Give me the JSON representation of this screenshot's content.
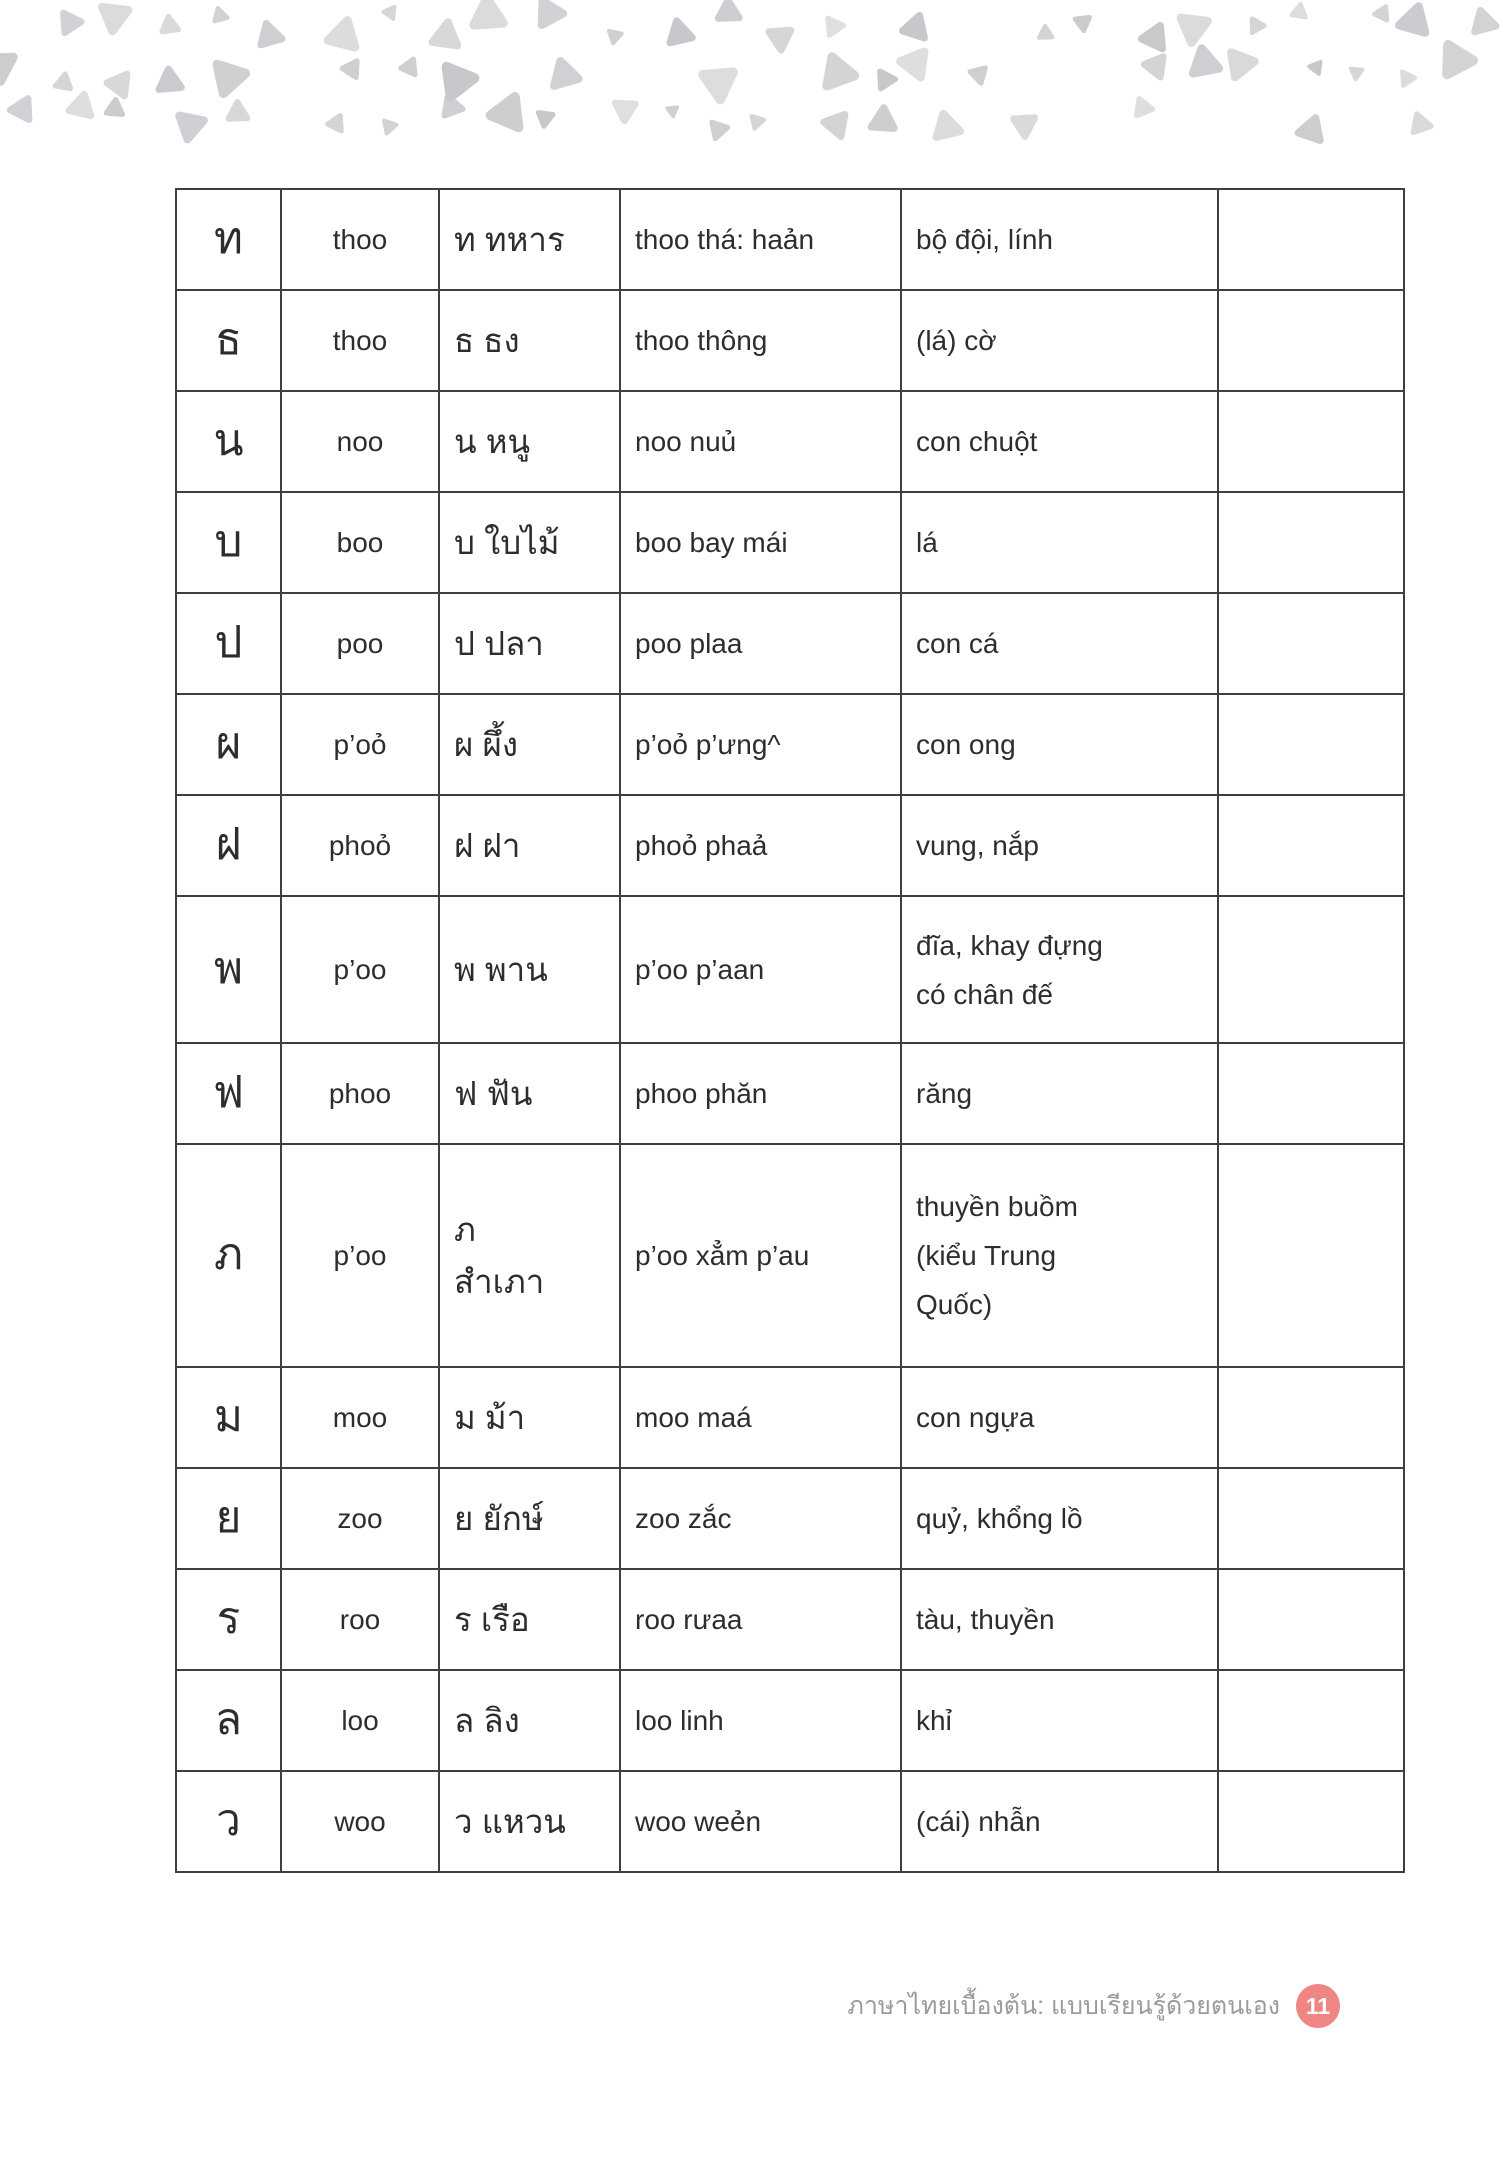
{
  "page": {
    "number": "11",
    "footer_title": "ภาษาไทยเบื้องต้น: แบบเรียนรู้ด้วยตนเอง"
  },
  "colors": {
    "badge_accent": "#ef8683",
    "triangle_gray": "#c8c8cc",
    "table_border": "#3f3f3f",
    "body_text": "#2d2d2d",
    "footer_text": "#9b9b9b"
  },
  "table": {
    "rows": [
      {
        "letter": "ท",
        "pronunciation": "thoo",
        "word": "ท ทหาร",
        "translit": "thoo thá: haản",
        "meaning": "bộ đội, lính",
        "notes": ""
      },
      {
        "letter": "ธ",
        "pronunciation": "thoo",
        "word": "ธ ธง",
        "translit": "thoo thông",
        "meaning": "(lá) cờ",
        "notes": ""
      },
      {
        "letter": "น",
        "pronunciation": "noo",
        "word": "น หนู",
        "translit": "noo nuủ",
        "meaning": "con chuột",
        "notes": ""
      },
      {
        "letter": "บ",
        "pronunciation": "boo",
        "word": "บ ใบไม้",
        "translit": "boo bay mái",
        "meaning": "lá",
        "notes": ""
      },
      {
        "letter": "ป",
        "pronunciation": "poo",
        "word": "ป ปลา",
        "translit": "poo plaa",
        "meaning": "con cá",
        "notes": ""
      },
      {
        "letter": "ผ",
        "pronunciation": "p’oỏ",
        "word": "ผ ผึ้ง",
        "translit": "p’oỏ p’ưng^",
        "meaning": "con ong",
        "notes": ""
      },
      {
        "letter": "ฝ",
        "pronunciation": "phoỏ",
        "word": "ฝ ฝา",
        "translit": "phoỏ phaả",
        "meaning": "vung, nắp",
        "notes": ""
      },
      {
        "letter": "พ",
        "pronunciation": "p’oo",
        "word": "พ พาน",
        "translit": "p’oo p’aan",
        "meaning": "đĩa, khay đựng\ncó chân đế",
        "notes": ""
      },
      {
        "letter": "ฟ",
        "pronunciation": "phoo",
        "word": "ฟ ฟัน",
        "translit": "phoo phăn",
        "meaning": "răng",
        "notes": ""
      },
      {
        "letter": "ภ",
        "pronunciation": "p’oo",
        "word": "ภ\nสำเภา",
        "translit": "p’oo xẳm p’au",
        "meaning": "thuyền buồm\n(kiểu Trung\nQuốc)",
        "notes": ""
      },
      {
        "letter": "ม",
        "pronunciation": "moo",
        "word": "ม ม้า",
        "translit": "moo maá",
        "meaning": "con ngựa",
        "notes": ""
      },
      {
        "letter": "ย",
        "pronunciation": "zoo",
        "word": "ย ยักษ์",
        "translit": "zoo zắc",
        "meaning": "quỷ, khổng lồ",
        "notes": ""
      },
      {
        "letter": "ร",
        "pronunciation": "roo",
        "word": "ร เรือ",
        "translit": "roo rưaa",
        "meaning": "tàu, thuyền",
        "notes": ""
      },
      {
        "letter": "ล",
        "pronunciation": "loo",
        "word": "ล ลิง",
        "translit": "loo linh",
        "meaning": "khỉ",
        "notes": ""
      },
      {
        "letter": "ว",
        "pronunciation": "woo",
        "word": "ว แหวน",
        "translit": "woo weẻn",
        "meaning": "(cái) nhẫn",
        "notes": ""
      }
    ]
  }
}
